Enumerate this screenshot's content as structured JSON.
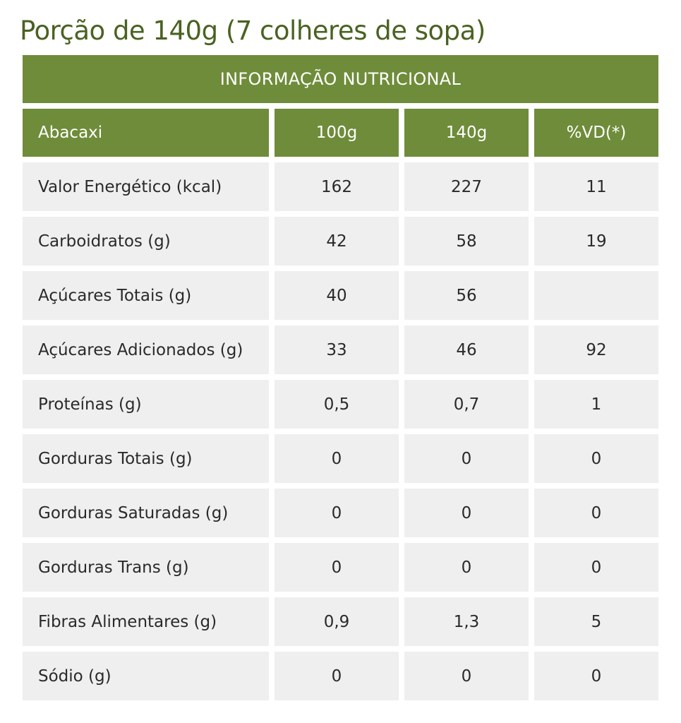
{
  "title": "Porção de 140g (7 colheres de sopa)",
  "table": {
    "main_header": "INFORMAÇÃO NUTRICIONAL",
    "columns": [
      "Abacaxi",
      "100g",
      "140g",
      "%VD(*)"
    ],
    "rows": [
      {
        "name": "Valor Energético (kcal)",
        "per100": "162",
        "per140": "227",
        "vd": "11"
      },
      {
        "name": "Carboidratos (g)",
        "per100": "42",
        "per140": "58",
        "vd": "19"
      },
      {
        "name": "Açúcares Totais (g)",
        "per100": "40",
        "per140": "56",
        "vd": ""
      },
      {
        "name": "Açúcares Adicionados (g)",
        "per100": "33",
        "per140": "46",
        "vd": "92"
      },
      {
        "name": "Proteínas (g)",
        "per100": "0,5",
        "per140": "0,7",
        "vd": "1"
      },
      {
        "name": "Gorduras Totais (g)",
        "per100": "0",
        "per140": "0",
        "vd": "0"
      },
      {
        "name": "Gorduras Saturadas (g)",
        "per100": "0",
        "per140": "0",
        "vd": "0"
      },
      {
        "name": "Gorduras Trans (g)",
        "per100": "0",
        "per140": "0",
        "vd": "0"
      },
      {
        "name": "Fibras Alimentares (g)",
        "per100": "0,9",
        "per140": "1,3",
        "vd": "5"
      },
      {
        "name": "Sódio (g)",
        "per100": "0",
        "per140": "0",
        "vd": "0"
      }
    ]
  },
  "colors": {
    "header_green": "#6f8c3a",
    "title_green": "#4a6222",
    "cell_gray": "#efefef"
  }
}
